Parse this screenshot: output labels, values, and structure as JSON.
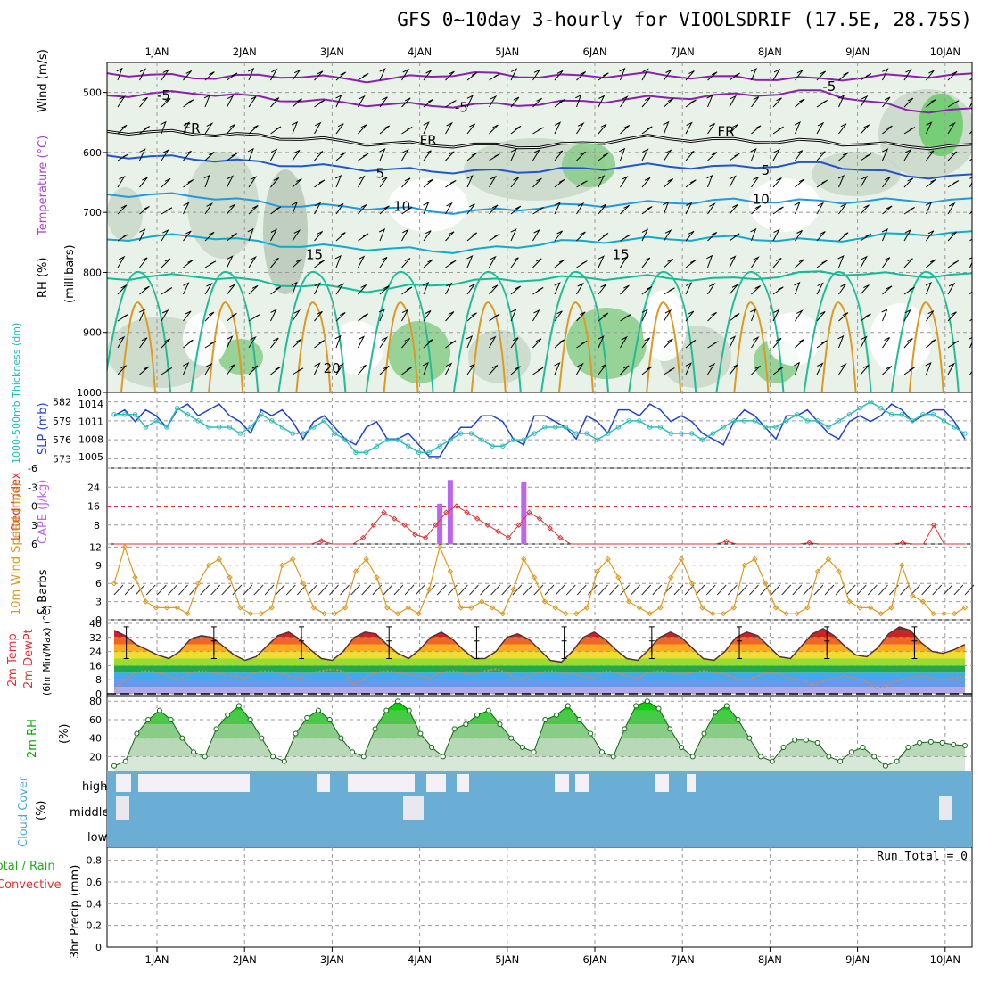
{
  "title": "GFS 0~10day 3-hourly for VIOOLSDRIF (17.5E, 28.75S)",
  "dates": [
    "1JAN",
    "2JAN",
    "3JAN",
    "4JAN",
    "5JAN",
    "6JAN",
    "7JAN",
    "8JAN",
    "9JAN",
    "10JAN"
  ],
  "run_total": "Run Total = 0",
  "colors": {
    "temp": "#cc4400",
    "wind_main": "#000000",
    "rh": "#00aa00",
    "thick": "#33bbbb",
    "slp": "#2244cc",
    "cape": "#bb66ee",
    "li": "#dd3333",
    "wind10": "#dd9922",
    "cloud": "#6aaed6",
    "precip": "#44aa44"
  },
  "chart_data": [
    {
      "type": "contour",
      "name": "upper-air",
      "ylabel_lines": [
        "Wind (m/s)",
        "Temperature (°C)",
        "RH (%)",
        "(millibars)"
      ],
      "yticks": [
        500,
        600,
        700,
        800,
        900,
        1000
      ],
      "ylim": [
        1000,
        450
      ],
      "contour_labels": [
        {
          "text": "-5",
          "day": 0.0,
          "p": 505
        },
        {
          "text": "-5",
          "day": 3.4,
          "p": 525
        },
        {
          "text": "-5",
          "day": 7.6,
          "p": 490
        },
        {
          "text": "FR",
          "day": 0.3,
          "p": 560
        },
        {
          "text": "FR",
          "day": 3.0,
          "p": 580
        },
        {
          "text": "FR",
          "day": 6.4,
          "p": 565
        },
        {
          "text": "5",
          "day": 2.5,
          "p": 635
        },
        {
          "text": "5",
          "day": 6.9,
          "p": 630
        },
        {
          "text": "10",
          "day": 2.7,
          "p": 690
        },
        {
          "text": "10",
          "day": 6.8,
          "p": 678
        },
        {
          "text": "15",
          "day": 1.7,
          "p": 770
        },
        {
          "text": "15",
          "day": 5.2,
          "p": 770
        },
        {
          "text": "20",
          "day": 1.9,
          "p": 960
        }
      ],
      "isotherms": [
        {
          "label": "-5",
          "color": "#8822aa",
          "levels": [
            468,
            475,
            472,
            480,
            468,
            474,
            470,
            476,
            478,
            472
          ]
        },
        {
          "label": "-5b",
          "color": "#8822aa",
          "levels": [
            505,
            500,
            512,
            520,
            522,
            518,
            510,
            505,
            498,
            530
          ]
        },
        {
          "label": "FR",
          "color": "#000000",
          "levels": [
            565,
            568,
            575,
            585,
            588,
            590,
            575,
            580,
            582,
            590
          ]
        },
        {
          "label": "5",
          "color": "#2255cc",
          "levels": [
            605,
            610,
            620,
            628,
            632,
            630,
            622,
            625,
            618,
            640
          ]
        },
        {
          "label": "10",
          "color": "#2299dd",
          "levels": [
            670,
            672,
            688,
            692,
            700,
            690,
            685,
            680,
            682,
            680
          ]
        },
        {
          "label": "15",
          "color": "#11aacc",
          "levels": [
            745,
            738,
            755,
            760,
            765,
            750,
            745,
            742,
            748,
            735
          ]
        },
        {
          "label": "20",
          "color": "#11bb99",
          "levels": [
            810,
            805,
            820,
            830,
            815,
            810,
            808,
            812,
            800,
            805
          ]
        }
      ]
    },
    {
      "type": "line",
      "name": "thickness-slp",
      "ylabel_lines": [
        "1000-500mb Thickness (dm)",
        "SLP (mb)"
      ],
      "yticks_left": [
        573,
        576,
        579,
        582
      ],
      "yticks_right": [
        1005,
        1008,
        1011,
        1014
      ],
      "series": [
        {
          "name": "SLP (mb)",
          "axis": "right",
          "values": [
            1012,
            1013,
            1011,
            1013,
            1012,
            1010,
            1013,
            1014,
            1012,
            1013,
            1014,
            1012,
            1011,
            1009,
            1013,
            1012,
            1013,
            1011,
            1008,
            1011,
            1012,
            1010,
            1008,
            1007,
            1010,
            1011,
            1008,
            1008,
            1009,
            1007,
            1005,
            1005,
            1008,
            1010,
            1010,
            1012,
            1012,
            1011,
            1008,
            1007,
            1012,
            1012,
            1011,
            1010,
            1008,
            1012,
            1011,
            1009,
            1013,
            1013,
            1012,
            1014,
            1013,
            1011,
            1012,
            1011,
            1009,
            1008,
            1007,
            1011,
            1013,
            1012,
            1010,
            1008,
            1012,
            1012,
            1013,
            1011,
            1009,
            1008,
            1011,
            1012,
            1011,
            1012,
            1014,
            1013,
            1011,
            1012,
            1013,
            1013,
            1011,
            1008
          ]
        },
        {
          "name": "Thickness (dm)",
          "axis": "left",
          "values": [
            580,
            580,
            580,
            578,
            579,
            578,
            581,
            580,
            579,
            578,
            578,
            578,
            577,
            578,
            580,
            579,
            578,
            577,
            577,
            578,
            579,
            577,
            576,
            574,
            574,
            575,
            576,
            576,
            575,
            574,
            574,
            575,
            576,
            577,
            577,
            576,
            575,
            575,
            576,
            576,
            577,
            578,
            578,
            578,
            577,
            577,
            576,
            577,
            578,
            579,
            579,
            578,
            578,
            577,
            577,
            577,
            576,
            577,
            578,
            579,
            579,
            579,
            578,
            578,
            579,
            580,
            579,
            579,
            578,
            579,
            580,
            581,
            582,
            581,
            580,
            580,
            579,
            580,
            580,
            579,
            578,
            577
          ]
        }
      ]
    },
    {
      "type": "bar+line",
      "name": "cape-li",
      "ylabel_lines": [
        "Lifted Index",
        "CAPE (J/kg)"
      ],
      "yticks_left": [
        -6,
        -3,
        0,
        3,
        6
      ],
      "yticks_right": [
        8,
        16,
        24
      ],
      "cape_bars": [
        {
          "step": 31,
          "value": 17
        },
        {
          "step": 32,
          "value": 27
        },
        {
          "step": 39,
          "value": 26
        }
      ],
      "series": [
        {
          "name": "Lifted Index",
          "values": [
            6,
            6,
            6,
            6,
            6,
            6,
            6,
            6,
            6,
            6,
            6,
            6,
            6,
            6,
            6,
            6,
            6,
            6,
            6,
            6,
            5.5,
            6,
            6,
            6,
            5,
            3,
            1,
            2,
            3,
            4.5,
            5,
            3,
            1,
            0,
            1,
            2,
            3,
            4,
            5,
            3,
            1,
            2,
            3.5,
            5,
            6,
            6,
            6,
            6,
            6,
            6,
            6,
            6,
            6,
            6,
            6,
            6,
            6,
            6,
            6,
            5.6,
            6,
            6,
            6,
            6,
            6,
            6,
            6,
            5.8,
            6,
            6,
            6,
            6,
            6,
            6,
            6,
            6,
            5.8,
            6,
            6,
            3,
            6,
            6,
            6
          ]
        }
      ]
    },
    {
      "type": "line",
      "name": "wind10m",
      "ylabel_lines": [
        "10m Wind Speed (m/s)",
        "& Barbs"
      ],
      "yticks": [
        0,
        3,
        6,
        9,
        12
      ],
      "series": [
        {
          "name": "Wind Speed (m/s)",
          "values": [
            6,
            12,
            7,
            3,
            2,
            2,
            2,
            1,
            6,
            9,
            10,
            7,
            2,
            1,
            1,
            2,
            9,
            10,
            6,
            2,
            1,
            1,
            2,
            8,
            10,
            7,
            2,
            1,
            2,
            1,
            5,
            12,
            8,
            2,
            2,
            3,
            2,
            1,
            5,
            10,
            7,
            3,
            2,
            1,
            1,
            2,
            8,
            10,
            7,
            3,
            2,
            1,
            2,
            7,
            10,
            6,
            2,
            1,
            1,
            2,
            9,
            10,
            6,
            2,
            1,
            1,
            2,
            8,
            10,
            8,
            3,
            2,
            2,
            1,
            2,
            9,
            4,
            3,
            1,
            1,
            1,
            2
          ]
        }
      ]
    },
    {
      "type": "area",
      "name": "temperature",
      "ylabel_lines": [
        "2m Temp",
        "2m DewPt",
        "(6hr Min/Max) (°C)"
      ],
      "yticks": [
        0,
        8,
        16,
        24,
        32,
        40
      ],
      "series": [
        {
          "name": "2m Temp",
          "values": [
            36,
            33,
            28,
            25,
            22,
            20,
            24,
            31,
            33,
            32,
            27,
            22,
            19,
            21,
            27,
            33,
            35,
            31,
            25,
            20,
            19,
            24,
            32,
            35,
            34,
            28,
            23,
            20,
            25,
            32,
            35,
            31,
            25,
            20,
            20,
            24,
            32,
            34,
            31,
            25,
            19,
            18,
            24,
            32,
            35,
            31,
            25,
            20,
            19,
            25,
            32,
            35,
            32,
            26,
            20,
            19,
            24,
            32,
            35,
            33,
            27,
            21,
            20,
            27,
            34,
            37,
            33,
            27,
            22,
            21,
            26,
            34,
            38,
            36,
            29,
            24,
            23,
            25,
            28
          ]
        },
        {
          "name": "2m DewPt",
          "values": [
            3,
            8,
            12,
            13,
            12,
            10,
            8,
            12,
            13,
            12,
            11,
            10,
            9,
            12,
            13,
            12,
            10,
            9,
            12,
            13,
            14,
            13,
            5,
            9,
            12,
            13,
            12,
            11,
            10,
            9,
            12,
            13,
            12,
            11,
            13,
            14,
            12,
            8,
            10,
            12,
            13,
            12,
            11,
            10,
            9,
            13,
            12,
            10,
            9,
            12,
            13,
            12,
            11,
            12,
            13,
            12,
            11,
            9,
            8,
            10,
            12,
            11,
            9,
            8,
            5,
            7,
            9,
            10,
            9,
            7,
            3,
            5,
            8,
            9,
            10,
            9,
            8,
            9,
            10
          ]
        }
      ]
    },
    {
      "type": "area",
      "name": "humidity",
      "ylabel_lines": [
        "2m RH",
        "(%)"
      ],
      "yticks": [
        20,
        40,
        60,
        80
      ],
      "series": [
        {
          "name": "2m RH",
          "values": [
            10,
            15,
            45,
            60,
            70,
            60,
            40,
            25,
            20,
            50,
            65,
            75,
            60,
            40,
            20,
            15,
            45,
            62,
            70,
            60,
            40,
            25,
            20,
            50,
            70,
            80,
            70,
            45,
            30,
            20,
            50,
            55,
            65,
            70,
            55,
            40,
            30,
            25,
            60,
            65,
            75,
            60,
            45,
            25,
            20,
            50,
            75,
            80,
            72,
            50,
            30,
            20,
            45,
            68,
            75,
            60,
            40,
            20,
            15,
            30,
            38,
            38,
            35,
            20,
            15,
            25,
            30,
            20,
            10,
            15,
            30,
            35,
            36,
            35,
            33,
            32
          ]
        }
      ]
    },
    {
      "type": "bar",
      "name": "cloud-cover",
      "ylabel_lines": [
        "Cloud Cover",
        "(%)"
      ],
      "levels": [
        "high",
        "middle",
        "low"
      ]
    },
    {
      "type": "bar",
      "name": "precipitation",
      "ylabel_lines": [
        "Total / Rain",
        "Convective",
        "3hr Precip (mm)"
      ],
      "yticks": [
        0,
        0.2,
        0.4,
        0.6,
        0.8
      ],
      "values": []
    }
  ]
}
